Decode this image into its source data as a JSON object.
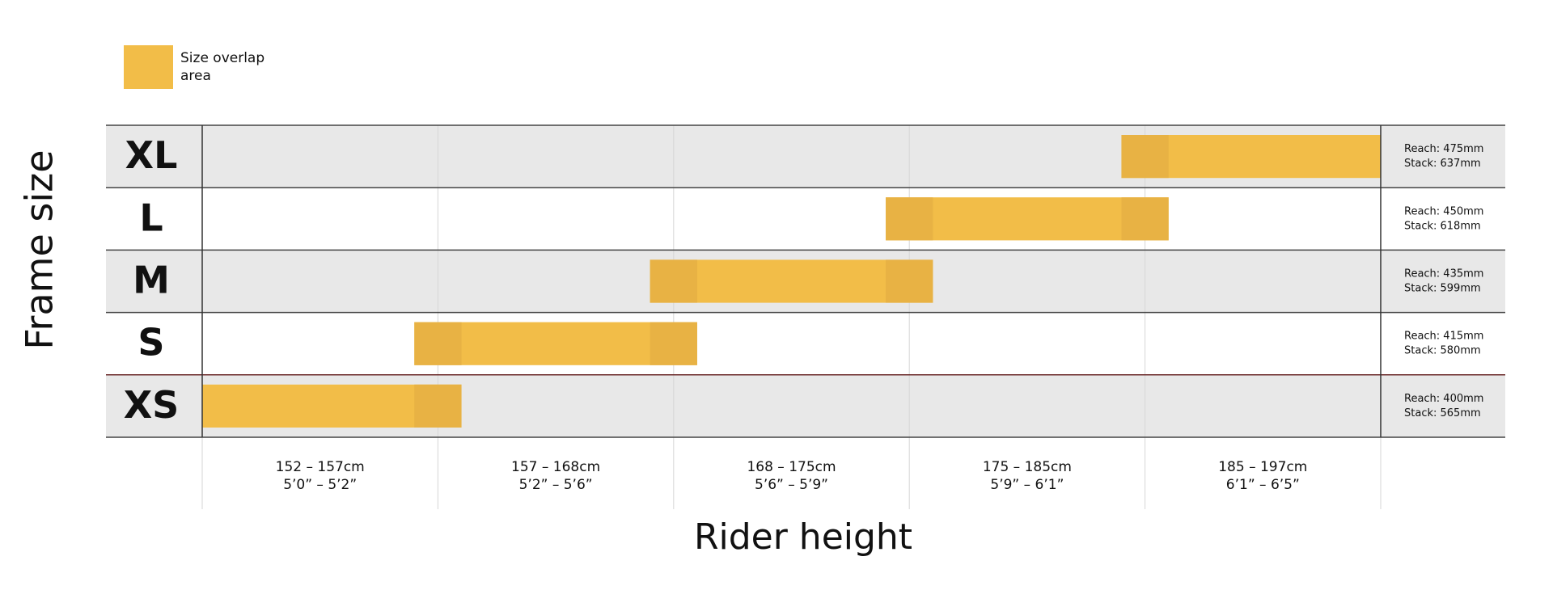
{
  "legend": {
    "lines": [
      "Size overlap",
      "area"
    ]
  },
  "y_axis_title": "Frame size",
  "x_axis_title": "Rider height",
  "rows": [
    {
      "size": "XL",
      "reach": "Reach: 475mm",
      "stack": "Stack: 637mm"
    },
    {
      "size": "L",
      "reach": "Reach: 450mm",
      "stack": "Stack: 618mm"
    },
    {
      "size": "M",
      "reach": "Reach: 435mm",
      "stack": "Stack: 599mm"
    },
    {
      "size": "S",
      "reach": "Reach: 415mm",
      "stack": "Stack: 580mm"
    },
    {
      "size": "XS",
      "reach": "Reach: 400mm",
      "stack": "Stack: 565mm"
    }
  ],
  "columns": [
    {
      "cm": "152 – 157cm",
      "imperial": "5’0” – 5’2”"
    },
    {
      "cm": "157 – 168cm",
      "imperial": "5’2” – 5’6”"
    },
    {
      "cm": "168 – 175cm",
      "imperial": "5’6” – 5’9”"
    },
    {
      "cm": "175 – 185cm",
      "imperial": "5’9” – 6’1”"
    },
    {
      "cm": "185 – 197cm",
      "imperial": "6’1” – 6’5”"
    }
  ]
}
